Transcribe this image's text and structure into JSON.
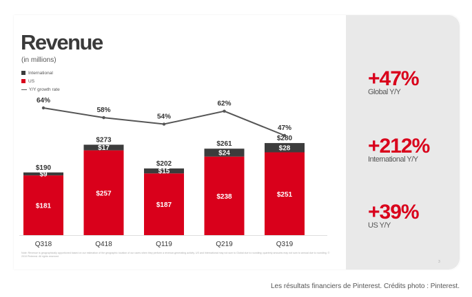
{
  "header": {
    "title": "Revenue",
    "subtitle": "(in millions)"
  },
  "legend": {
    "international": "International",
    "us": "US",
    "growth": "Y/Y growth rate"
  },
  "chart_data": {
    "type": "bar",
    "stacked": true,
    "title": "Revenue",
    "subtitle": "(in millions)",
    "categories": [
      "Q318",
      "Q418",
      "Q119",
      "Q219",
      "Q319"
    ],
    "series": [
      {
        "name": "US",
        "values": [
          181,
          257,
          187,
          238,
          251
        ],
        "labels": [
          "$181",
          "$257",
          "$187",
          "$238",
          "$251"
        ],
        "color": "#d9001b"
      },
      {
        "name": "International",
        "values": [
          9,
          17,
          15,
          24,
          28
        ],
        "labels": [
          "$9",
          "$17",
          "$15",
          "$24",
          "$28"
        ],
        "color": "#3c3c3c"
      }
    ],
    "totals": [
      190,
      273,
      202,
      261,
      280
    ],
    "total_labels": [
      "$190",
      "$273",
      "$202",
      "$261",
      "$280"
    ],
    "line_series": {
      "name": "Y/Y growth rate",
      "values": [
        64,
        58,
        54,
        62,
        47
      ],
      "labels": [
        "64%",
        "58%",
        "54%",
        "62%",
        "47%"
      ],
      "color": "#555555"
    },
    "ylim": [
      0,
      300
    ],
    "xlabel": "",
    "ylabel": ""
  },
  "stats": [
    {
      "value": "+47%",
      "label": "Global Y/Y"
    },
    {
      "value": "+212%",
      "label": "International Y/Y"
    },
    {
      "value": "+39%",
      "label": "US Y/Y"
    }
  ],
  "note": "Note: Revenue is geographically apportioned based on our estimation of the geographic location of our users when they perform a revenue-generating activity. US and International may not sum to Global due to rounding; quarterly amounts may not sum to annual due to rounding. © 2019 Pinterest. All rights reserved.",
  "page_number": "3",
  "caption": "Les résultats financiers de Pinterest. Crédits photo : Pinterest.",
  "colors": {
    "us": "#d9001b",
    "international": "#3c3c3c",
    "growth_line": "#555555",
    "accent": "#d9001b",
    "panel": "#e9e9e9"
  }
}
